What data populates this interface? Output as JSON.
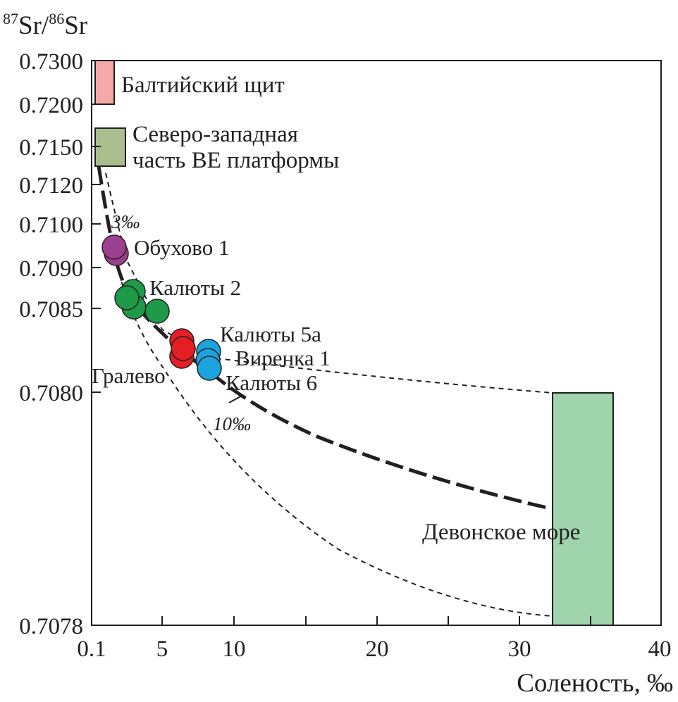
{
  "chart_data": {
    "type": "scatter",
    "y_axis": {
      "label_pre": "87",
      "label_mid": "Sr/",
      "label_sup2": "86",
      "label_post": "Sr",
      "ticks": [
        "0.7300",
        "0.7200",
        "0.7150",
        "0.7120",
        "0.7100",
        "0.7090",
        "0.7085",
        "0.7080",
        "0.7078"
      ]
    },
    "x_axis": {
      "label": "Соленость, ‰",
      "ticks": [
        "0.1",
        "5",
        "10",
        "20",
        "30",
        "40"
      ],
      "range": [
        0,
        40
      ]
    },
    "regions": [
      {
        "name": "Балтийский щит",
        "x": [
          0.2,
          1.5
        ],
        "y": [
          0.72,
          0.73
        ],
        "color": "#f4a9a8"
      },
      {
        "name_line1": "Северо-западная",
        "name_line2": "часть ВЕ платформы",
        "x": [
          0.2,
          2.3
        ],
        "y": [
          0.7135,
          0.7165
        ],
        "color": "#a9bd8d"
      },
      {
        "name": "Девонское море",
        "x": [
          32.5,
          36.7
        ],
        "y": [
          0.70781,
          0.708
        ],
        "color": "#9fd4ad"
      }
    ],
    "series": [
      {
        "name": "Обухово 1",
        "color": "#9c3f8e",
        "points": [
          [
            1.6,
            0.70925
          ],
          [
            1.5,
            0.70935
          ]
        ]
      },
      {
        "name": "Калюты 2",
        "color": "#1e9a48",
        "points": [
          [
            2.8,
            0.70869
          ],
          [
            2.4,
            0.7086
          ],
          [
            2.9,
            0.70852
          ],
          [
            4.6,
            0.70846
          ]
        ]
      },
      {
        "name": "Гралево",
        "color": "#e31e24",
        "points": [
          [
            6.3,
            0.70827
          ],
          [
            6.3,
            0.70819
          ],
          [
            6.4,
            0.70823
          ]
        ]
      },
      {
        "name_a": "Калюты 5а",
        "name_b": "Виренка 1",
        "name_c": "Калюты 6",
        "color": "#1aa3dd",
        "points": [
          [
            8.2,
            0.70822
          ],
          [
            8.2,
            0.70818
          ],
          [
            8.3,
            0.70813
          ]
        ]
      }
    ],
    "mixing_curve_labels": {
      "low": "3‰",
      "high": "10‰"
    }
  }
}
